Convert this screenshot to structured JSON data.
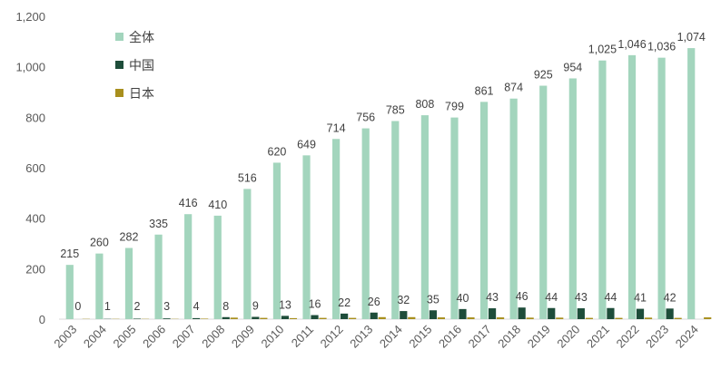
{
  "chart_data": {
    "type": "bar",
    "categories": [
      "2003",
      "2004",
      "2005",
      "2006",
      "2007",
      "2008",
      "2009",
      "2010",
      "2011",
      "2012",
      "2013",
      "2014",
      "2015",
      "2016",
      "2017",
      "2018",
      "2019",
      "2020",
      "2021",
      "2022",
      "2023",
      "2024"
    ],
    "series": [
      {
        "name": "全体",
        "color": "#a3d5bd",
        "values": [
          215,
          260,
          282,
          335,
          416,
          410,
          516,
          620,
          649,
          714,
          756,
          785,
          808,
          799,
          861,
          874,
          925,
          954,
          1025,
          1046,
          1036,
          1074
        ]
      },
      {
        "name": "中国",
        "color": "#1e4d3a",
        "values": [
          0,
          1,
          2,
          3,
          4,
          8,
          9,
          13,
          16,
          22,
          26,
          32,
          35,
          40,
          43,
          46,
          44,
          43,
          44,
          41,
          42,
          null
        ]
      },
      {
        "name": "日本",
        "color": "#a88f1d",
        "values": [
          1,
          1,
          1,
          1,
          2,
          6,
          5,
          4,
          5,
          5,
          8,
          8,
          7,
          7,
          7,
          6,
          6,
          5,
          5,
          6,
          5,
          7
        ]
      }
    ],
    "labeled_series": [
      "全体",
      "中国"
    ],
    "y_ticks": [
      "0",
      "200",
      "400",
      "600",
      "800",
      "1,000",
      "1,200"
    ],
    "ylim": [
      0,
      1200
    ],
    "grid": false,
    "legend_position": "top-left",
    "title": "",
    "xlabel": "",
    "ylabel": ""
  }
}
